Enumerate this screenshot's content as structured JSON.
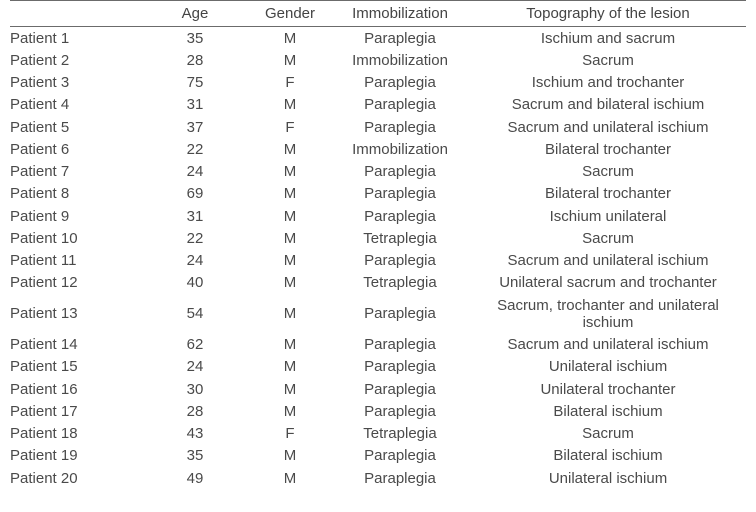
{
  "table": {
    "columns": [
      "",
      "Age",
      "Gender",
      "Immobilization",
      "Topography of the lesion"
    ],
    "col_align": [
      "left",
      "center",
      "center",
      "center",
      "center"
    ],
    "header_fontsize": 15,
    "body_fontsize": 15,
    "text_color": "#4a4a4a",
    "rule_color": "#6b6b6b",
    "background_color": "#ffffff",
    "rows": [
      [
        "Patient 1",
        "35",
        "M",
        "Paraplegia",
        "Ischium and sacrum"
      ],
      [
        "Patient 2",
        "28",
        "M",
        "Immobilization",
        "Sacrum"
      ],
      [
        "Patient 3",
        "75",
        "F",
        "Paraplegia",
        "Ischium and trochanter"
      ],
      [
        "Patient 4",
        "31",
        "M",
        "Paraplegia",
        "Sacrum and bilateral ischium"
      ],
      [
        "Patient 5",
        "37",
        "F",
        "Paraplegia",
        "Sacrum and unilateral ischium"
      ],
      [
        "Patient 6",
        "22",
        "M",
        "Immobilization",
        "Bilateral trochanter"
      ],
      [
        "Patient 7",
        "24",
        "M",
        "Paraplegia",
        "Sacrum"
      ],
      [
        "Patient 8",
        "69",
        "M",
        "Paraplegia",
        "Bilateral trochanter"
      ],
      [
        "Patient 9",
        "31",
        "M",
        "Paraplegia",
        "Ischium unilateral"
      ],
      [
        "Patient 10",
        "22",
        "M",
        "Tetraplegia",
        "Sacrum"
      ],
      [
        "Patient 11",
        "24",
        "M",
        "Paraplegia",
        "Sacrum and  unilateral ischium"
      ],
      [
        "Patient 12",
        "40",
        "M",
        "Tetraplegia",
        "Unilateral sacrum and trochanter"
      ],
      [
        "Patient 13",
        "54",
        "M",
        "Paraplegia",
        "Sacrum, trochanter and unilateral ischium"
      ],
      [
        "Patient 14",
        "62",
        "M",
        "Paraplegia",
        "Sacrum and unilateral ischium"
      ],
      [
        "Patient 15",
        "24",
        "M",
        "Paraplegia",
        "Unilateral ischium"
      ],
      [
        "Patient 16",
        "30",
        "M",
        "Paraplegia",
        "Unilateral trochanter"
      ],
      [
        "Patient 17",
        "28",
        "M",
        "Paraplegia",
        "Bilateral ischium"
      ],
      [
        "Patient 18",
        "43",
        "F",
        "Tetraplegia",
        "Sacrum"
      ],
      [
        "Patient 19",
        "35",
        "M",
        "Paraplegia",
        "Bilateral ischium"
      ],
      [
        "Patient 20",
        "49",
        "M",
        "Paraplegia",
        "Unilateral ischium"
      ]
    ]
  }
}
